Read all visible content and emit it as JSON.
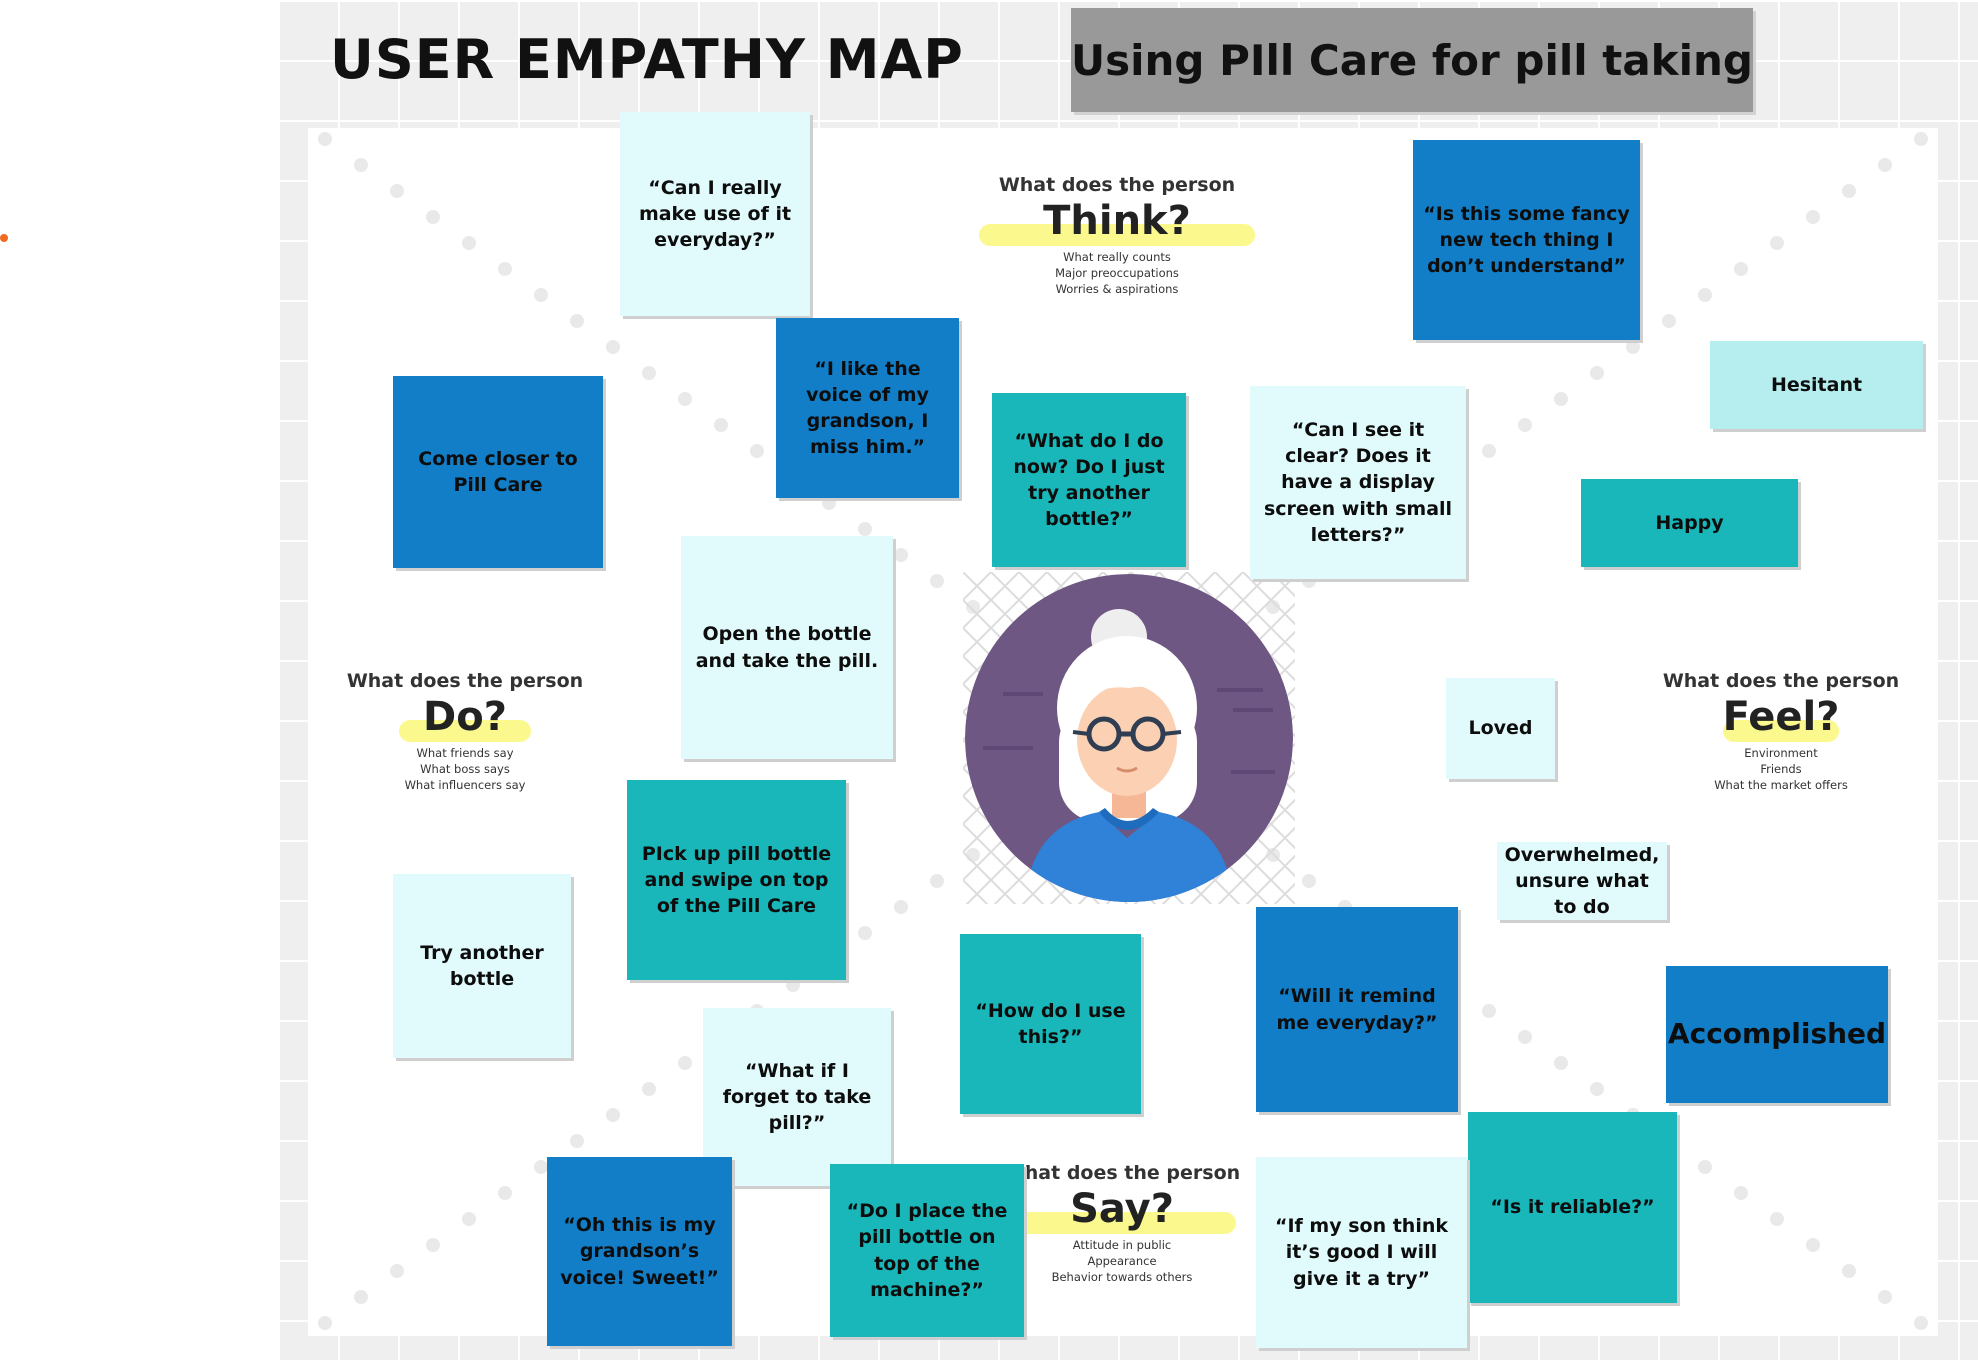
{
  "header": {
    "title": "USER EMPATHY MAP",
    "scenario": "Using PIll Care for pill taking"
  },
  "quadrants": {
    "think": {
      "label": "What does the person",
      "word": "Think?",
      "hints": [
        "What really counts",
        "Major preoccupations",
        "Worries & aspirations"
      ]
    },
    "do": {
      "label": "What does the person",
      "word": "Do?",
      "hints": [
        "What friends say",
        "What boss says",
        "What influencers say"
      ]
    },
    "feel": {
      "label": "What does the person",
      "word": "Feel?",
      "hints": [
        "Environment",
        "Friends",
        "What the market offers"
      ]
    },
    "say": {
      "label": "What does the person",
      "word": "Say?",
      "hints": [
        "Attitude in public",
        "Appearance",
        "Behavior towards others"
      ]
    }
  },
  "notes": {
    "can_i_use_everyday": "“Can I really make use of it everyday?”",
    "fancy_tech": "“Is this some fancy new tech thing I don’t understand”",
    "like_voice": "“I like the voice of my grandson, I miss him.”",
    "come_closer": "Come closer to Pill Care",
    "what_do_i_do_now": "“What do I do now? Do I just try another bottle?”",
    "see_it_clear": "“Can I see it clear? Does it have a display screen with small letters?”",
    "hesitant": "Hesitant",
    "happy": "Happy",
    "open_bottle": "Open the bottle and take the pill.",
    "loved": "Loved",
    "pick_up_bottle": "PIck up pill bottle and swipe on top of the Pill Care",
    "overwhelmed": "Overwhelmed, unsure what to do",
    "try_another": "Try another bottle",
    "how_do_i_use": "“How do I use this?”",
    "remind_me": "“Will it remind me everyday?”",
    "accomplished": "Accomplished",
    "forget_pill": "“What if I forget to take pill?”",
    "is_reliable": "“Is it reliable?”",
    "grandsons_voice": "“Oh this is my grandson’s voice! Sweet!”",
    "place_bottle": "“Do I place the pill bottle on top of the machine?”",
    "son_think_good": "“If my son think it’s good I will give it a try”"
  },
  "colors": {
    "dark_note": "#127ec8",
    "teal_note": "#19b7b9",
    "light_note": "#e1fbfc",
    "pale_note": "#b6eef0",
    "highlight": "#fbf98d",
    "title_box": "#999999",
    "avatar_circle": "#6f5784"
  },
  "icons": {
    "avatar": "elderly-woman-avatar-icon"
  }
}
